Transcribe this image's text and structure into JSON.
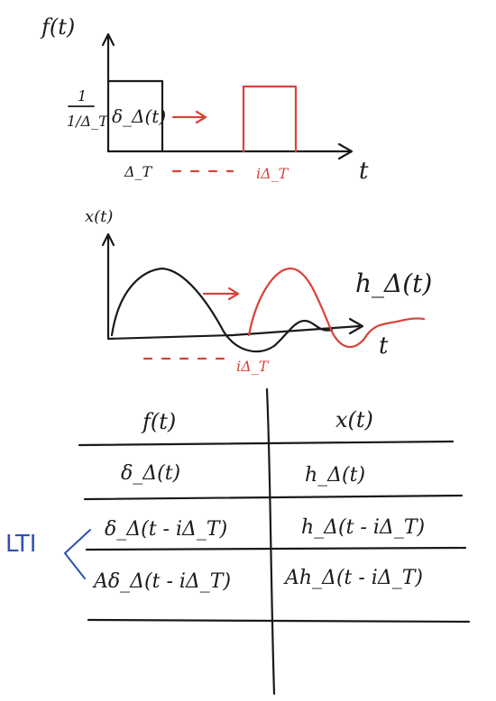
{
  "top_plot": {
    "y_label": "f(t)",
    "height_label": "1/Δ_T",
    "pulse_label": "δ_Δ(t)",
    "x_label": "t",
    "tick_origin": "Δ_T",
    "tick_shifted": "iΔ_T"
  },
  "middle_plot": {
    "y_label": "x(t)",
    "response_label": "h_Δ(t)",
    "x_label": "t",
    "tick_shifted": "iΔ_T"
  },
  "table": {
    "headers": [
      "f(t)",
      "x(t)"
    ],
    "rows": [
      [
        "δ_Δ(t)",
        "h_Δ(t)"
      ],
      [
        "δ_Δ(t - iΔ_T)",
        "h_Δ(t - iΔ_T)"
      ],
      [
        "Aδ_Δ(t - iΔ_T)",
        "Ah_Δ(t - iΔ_T)"
      ]
    ]
  },
  "side_note": "LTI",
  "colors": {
    "ink": "#1a1a1a",
    "highlight": "#d9433a",
    "note": "#2f4fb5"
  }
}
